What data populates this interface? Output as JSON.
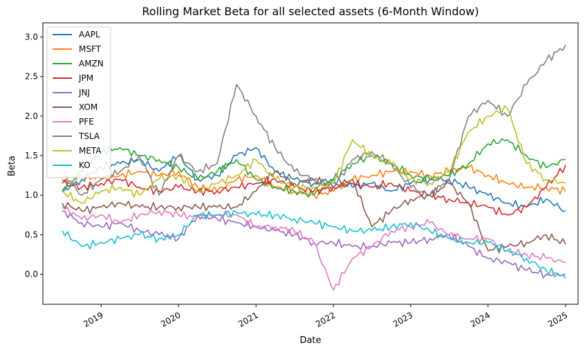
{
  "chart_data": {
    "type": "line",
    "title": "Rolling Market Beta for all selected assets (6-Month Window)",
    "xlabel": "Date",
    "ylabel": "Beta",
    "xlim": [
      "2018-04-01",
      "2025-03-01"
    ],
    "ylim": [
      -0.38,
      3.18
    ],
    "x_ticks": [
      {
        "date": "2019-01-01",
        "label": "2019"
      },
      {
        "date": "2020-01-01",
        "label": "2020"
      },
      {
        "date": "2021-01-01",
        "label": "2021"
      },
      {
        "date": "2022-01-01",
        "label": "2022"
      },
      {
        "date": "2023-01-01",
        "label": "2023"
      },
      {
        "date": "2024-01-01",
        "label": "2024"
      },
      {
        "date": "2025-01-01",
        "label": "2025"
      }
    ],
    "y_ticks": [
      0.0,
      0.5,
      1.0,
      1.5,
      2.0,
      2.5,
      3.0
    ],
    "y_tick_labels": [
      "0.0",
      "0.5",
      "1.0",
      "1.5",
      "2.0",
      "2.5",
      "3.0"
    ],
    "grid": false,
    "legend_position": "top-left",
    "x": [
      "2018-07-01",
      "2018-10-01",
      "2019-01-01",
      "2019-04-01",
      "2019-07-01",
      "2019-10-01",
      "2020-01-01",
      "2020-04-01",
      "2020-07-01",
      "2020-10-01",
      "2021-01-01",
      "2021-04-01",
      "2021-07-01",
      "2021-10-01",
      "2022-01-01",
      "2022-04-01",
      "2022-07-01",
      "2022-10-01",
      "2023-01-01",
      "2023-04-01",
      "2023-07-01",
      "2023-10-01",
      "2024-01-01",
      "2024-04-01",
      "2024-07-01",
      "2024-10-01",
      "2025-01-01"
    ],
    "series": [
      {
        "name": "AAPL",
        "color": "#1f77b4",
        "values": [
          1.05,
          1.2,
          1.35,
          1.4,
          1.45,
          1.3,
          1.5,
          1.2,
          1.25,
          1.5,
          1.6,
          1.3,
          1.2,
          1.15,
          1.2,
          1.1,
          1.15,
          1.05,
          1.15,
          1.2,
          1.2,
          1.1,
          1.0,
          0.9,
          0.85,
          0.95,
          0.8
        ]
      },
      {
        "name": "MSFT",
        "color": "#ff7f0e",
        "values": [
          1.2,
          1.25,
          1.2,
          1.25,
          1.3,
          1.25,
          1.3,
          1.1,
          1.05,
          1.2,
          1.25,
          1.1,
          1.05,
          1.0,
          1.05,
          1.2,
          1.25,
          1.3,
          1.3,
          1.25,
          1.3,
          1.35,
          1.25,
          1.15,
          1.1,
          1.1,
          1.05
        ]
      },
      {
        "name": "AMZN",
        "color": "#2ca02c",
        "values": [
          1.05,
          1.3,
          1.55,
          1.6,
          1.5,
          1.45,
          1.35,
          1.2,
          1.3,
          1.45,
          1.2,
          1.1,
          1.05,
          1.0,
          1.2,
          1.4,
          1.5,
          1.4,
          1.25,
          1.2,
          1.25,
          1.4,
          1.65,
          1.7,
          1.5,
          1.35,
          1.45
        ]
      },
      {
        "name": "JPM",
        "color": "#d62728",
        "values": [
          1.15,
          1.1,
          1.15,
          1.2,
          1.1,
          1.05,
          1.1,
          1.05,
          1.05,
          1.1,
          1.15,
          1.2,
          1.1,
          1.05,
          1.1,
          1.15,
          1.1,
          1.15,
          1.05,
          1.0,
          0.95,
          0.9,
          0.85,
          0.75,
          0.85,
          1.1,
          1.38
        ]
      },
      {
        "name": "JNJ",
        "color": "#9467bd",
        "values": [
          0.8,
          0.65,
          0.6,
          0.65,
          0.55,
          0.5,
          0.45,
          0.75,
          0.7,
          0.65,
          0.6,
          0.55,
          0.5,
          0.4,
          0.4,
          0.35,
          0.35,
          0.4,
          0.4,
          0.45,
          0.5,
          0.35,
          0.2,
          0.15,
          0.05,
          0.0,
          0.0
        ]
      },
      {
        "name": "XOM",
        "color": "#8c564b",
        "values": [
          0.9,
          0.8,
          0.85,
          0.9,
          0.85,
          0.85,
          0.85,
          0.85,
          0.85,
          0.85,
          1.05,
          1.3,
          1.15,
          1.2,
          1.1,
          1.2,
          0.6,
          0.8,
          0.95,
          1.0,
          1.15,
          0.9,
          0.3,
          0.35,
          0.4,
          0.5,
          0.38
        ]
      },
      {
        "name": "PFE",
        "color": "#e377c2",
        "values": [
          0.85,
          0.7,
          0.75,
          0.65,
          0.75,
          0.8,
          0.75,
          0.72,
          0.75,
          0.75,
          0.6,
          0.6,
          0.55,
          0.4,
          -0.2,
          0.2,
          0.35,
          0.55,
          0.6,
          0.65,
          0.5,
          0.45,
          0.45,
          0.3,
          0.25,
          0.2,
          0.15
        ]
      },
      {
        "name": "TSLA",
        "color": "#7f7f7f",
        "values": [
          1.3,
          1.0,
          1.2,
          1.3,
          1.5,
          1.0,
          1.5,
          1.3,
          1.4,
          2.4,
          2.0,
          1.6,
          1.3,
          1.2,
          1.1,
          1.45,
          1.55,
          1.4,
          1.1,
          1.0,
          1.2,
          2.0,
          2.2,
          2.0,
          2.4,
          2.7,
          2.9
        ]
      },
      {
        "name": "META",
        "color": "#bcbd22",
        "values": [
          1.05,
          0.9,
          1.05,
          1.1,
          1.0,
          1.2,
          1.25,
          1.05,
          1.15,
          1.25,
          1.45,
          1.2,
          1.1,
          1.1,
          1.15,
          1.7,
          1.5,
          1.4,
          1.2,
          1.15,
          1.3,
          1.8,
          2.0,
          2.1,
          1.4,
          1.2,
          1.15
        ]
      },
      {
        "name": "KO",
        "color": "#17becf",
        "values": [
          0.55,
          0.35,
          0.4,
          0.45,
          0.5,
          0.45,
          0.5,
          0.75,
          0.75,
          0.78,
          0.75,
          0.75,
          0.7,
          0.65,
          0.6,
          0.55,
          0.55,
          0.6,
          0.65,
          0.55,
          0.45,
          0.4,
          0.4,
          0.3,
          0.2,
          0.05,
          -0.05
        ]
      }
    ]
  }
}
